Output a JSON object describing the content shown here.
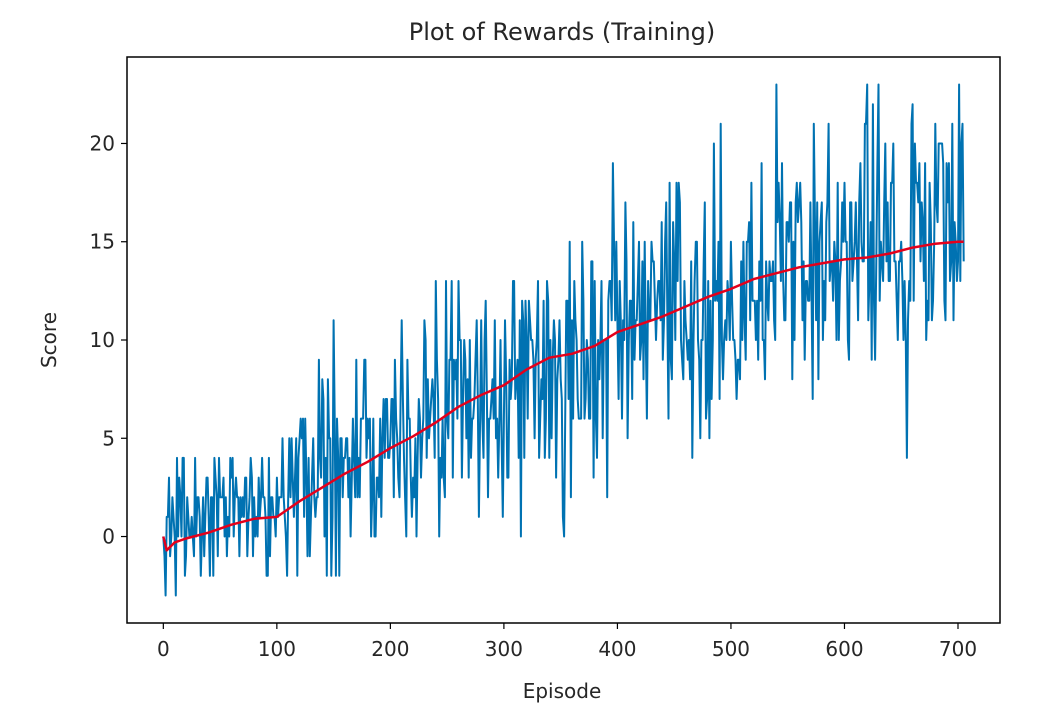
{
  "chart_data": {
    "type": "line",
    "title": "Plot of Rewards (Training)",
    "xlabel": "Episode",
    "ylabel": "Score",
    "xlim": [
      -32,
      737
    ],
    "ylim": [
      -4.4,
      24.4
    ],
    "grid": false,
    "xticks": [
      0,
      100,
      200,
      300,
      400,
      500,
      600,
      700
    ],
    "yticks": [
      0,
      5,
      10,
      15,
      20
    ],
    "series": [
      {
        "role": "raw-score",
        "color": "#0072B2",
        "x_start": 0,
        "x_step": 1,
        "values": []
      },
      {
        "role": "moving-average",
        "color": "#E3001B",
        "x": [
          0,
          3,
          10,
          20,
          40,
          60,
          80,
          100,
          120,
          140,
          160,
          180,
          200,
          220,
          240,
          260,
          280,
          300,
          320,
          340,
          360,
          380,
          400,
          420,
          440,
          460,
          480,
          500,
          520,
          540,
          560,
          580,
          600,
          620,
          640,
          660,
          680,
          700,
          705
        ],
        "values": [
          0.0,
          -0.7,
          -0.3,
          -0.1,
          0.2,
          0.6,
          0.9,
          1.0,
          1.8,
          2.5,
          3.2,
          3.8,
          4.5,
          5.1,
          5.8,
          6.6,
          7.2,
          7.7,
          8.5,
          9.1,
          9.3,
          9.7,
          10.4,
          10.8,
          11.2,
          11.7,
          12.2,
          12.6,
          13.1,
          13.4,
          13.7,
          13.9,
          14.1,
          14.2,
          14.4,
          14.7,
          14.9,
          15.0,
          15.0
        ]
      }
    ]
  }
}
